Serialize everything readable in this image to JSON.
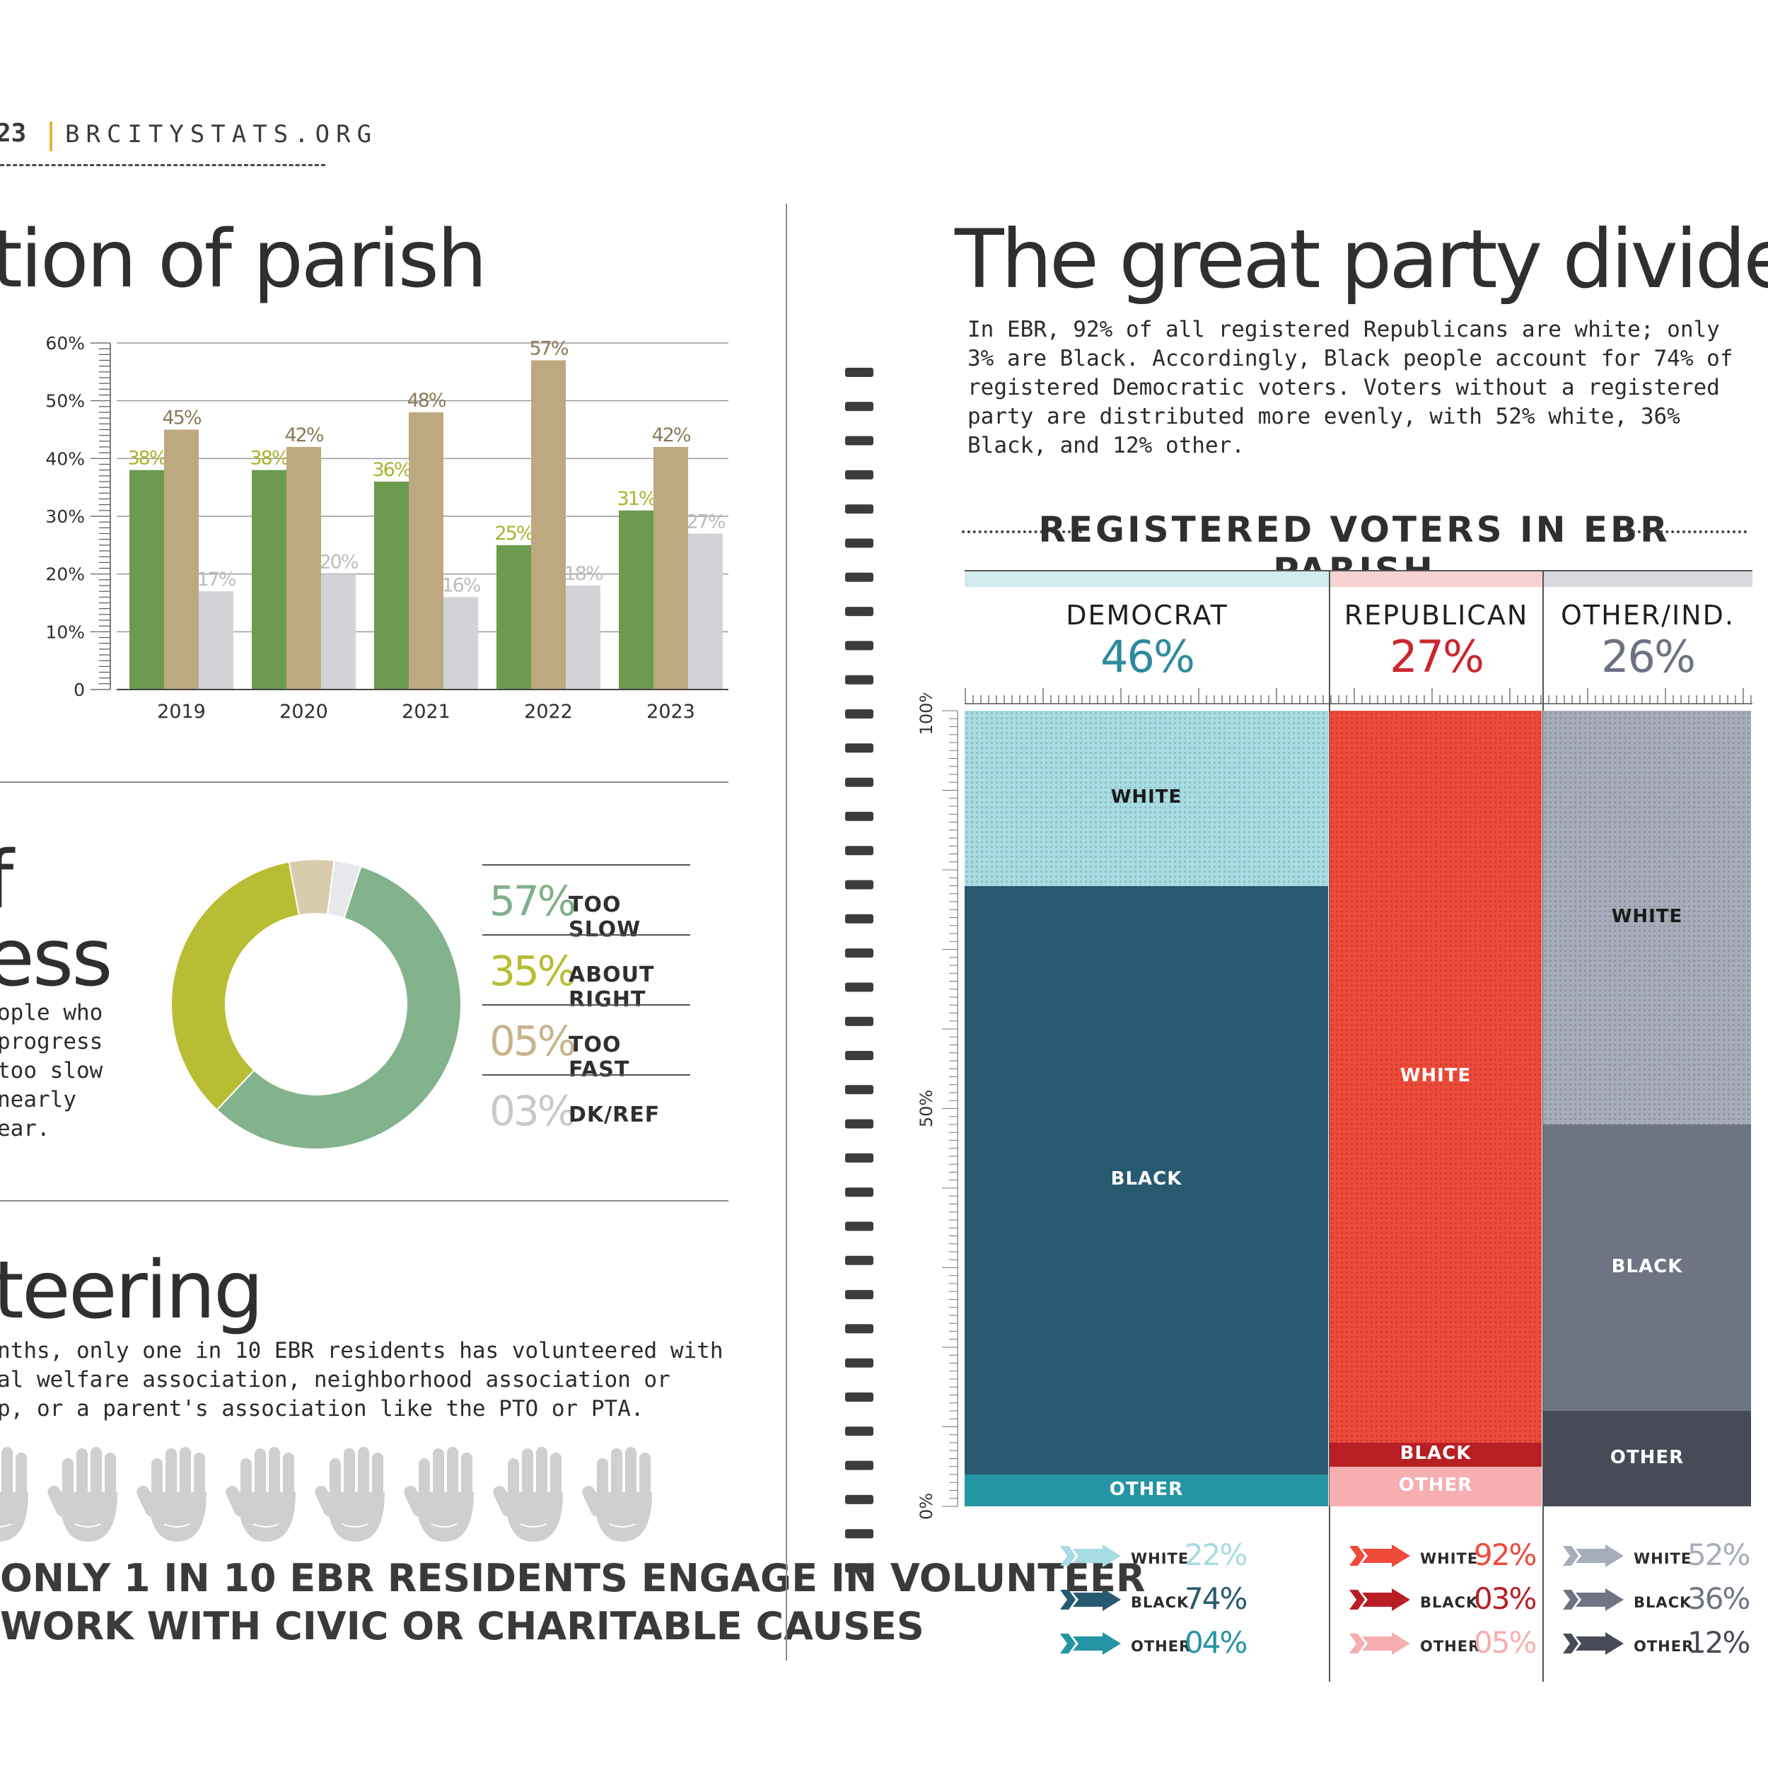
{
  "header": {
    "year_fragment": "23",
    "site": "BRCITYSTATS.ORG"
  },
  "left": {
    "section1_title": "tion of parish",
    "section2_title_a": "f",
    "section2_title_b": "ess",
    "section2_body": [
      "ople who",
      "progress",
      "too slow",
      " nearly",
      "ear."
    ],
    "section3_title": "teering",
    "section3_body": [
      "nths, only one in 10 EBR residents has volunteered with",
      "al welfare association, neighborhood association or",
      "p, or a parent's association like the PTO or PTA."
    ],
    "volunteer_line1": "ONLY 1 IN 10 EBR RESIDENTS ENGAGE IN VOLUNTEER",
    "volunteer_line2": "WORK WITH CIVIC OR CHARITABLE CAUSES",
    "legend": [
      {
        "pct": "57%",
        "label": "TOO SLOW",
        "color": "#7fb08a"
      },
      {
        "pct": "35%",
        "label": "ABOUT RIGHT",
        "color": "#b8bd33"
      },
      {
        "pct": "05%",
        "label": "TOO FAST",
        "color": "#c8b48c"
      },
      {
        "pct": "03%",
        "label": "DK/REF",
        "color": "#c9c9cc"
      }
    ]
  },
  "right": {
    "title": "The great party divide",
    "body": [
      "In EBR, 92% of all registered Republicans are white; only",
      "3% are Black. Accordingly, Black people account for 74% of",
      "registered Democratic voters. Voters without a registered",
      "party are distributed more evenly, with 52% white, 36%",
      "Black, and 12% other."
    ],
    "chart_title": "REGISTERED VOTERS IN EBR PARISH"
  },
  "chart_data": [
    {
      "type": "bar",
      "title": "",
      "categories": [
        "2019",
        "2020",
        "2021",
        "2022",
        "2023"
      ],
      "ylim": [
        0,
        60
      ],
      "yticks": [
        "0",
        "10%",
        "20%",
        "30%",
        "40%",
        "50%",
        "60%"
      ],
      "grid": true,
      "series": [
        {
          "values": [
            38,
            38,
            36,
            25,
            31
          ],
          "color": "#6c9a4e",
          "label_color": "#a9b52c"
        },
        {
          "values": [
            45,
            42,
            48,
            57,
            42
          ],
          "color": "#bca97f",
          "label_color": "#8b7b5a"
        },
        {
          "values": [
            17,
            20,
            16,
            18,
            27
          ],
          "color": "#d2d3d6",
          "label_color": "#bdbdbd"
        }
      ]
    },
    {
      "type": "pie",
      "donut": true,
      "labels": [
        "TOO SLOW",
        "ABOUT RIGHT",
        "TOO FAST",
        "DK/REF"
      ],
      "values": [
        57,
        35,
        5,
        3
      ],
      "colors": [
        "#82b38c",
        "#b9bd34",
        "#d9ccad",
        "#e8e8ec"
      ]
    },
    {
      "type": "bar",
      "stacked": true,
      "title": "REGISTERED VOTERS IN EBR PARISH",
      "yticks": [
        "0%",
        "50%",
        "100%"
      ],
      "parties": [
        {
          "name": "DEMOCRAT",
          "share": 46,
          "share_label": "46%",
          "color": "#2d8b9b",
          "top_color": "#d3ebee",
          "segments": [
            {
              "name": "OTHER",
              "value": 4,
              "label": "04%",
              "color": "#2594a4",
              "label_color": "#ffffff"
            },
            {
              "name": "BLACK",
              "value": 74,
              "label": "74%",
              "color": "#275a70",
              "label_color": "#ffffff"
            },
            {
              "name": "WHITE",
              "value": 22,
              "label": "22%",
              "color": "#a6dce2",
              "label_color": "#1a1a1a"
            }
          ]
        },
        {
          "name": "REPUBLICAN",
          "share": 27,
          "share_label": "27%",
          "color": "#c8272c",
          "top_color": "#f7d2d2",
          "segments": [
            {
              "name": "OTHER",
              "value": 5,
              "label": "05%",
              "color": "#f6aeb1",
              "label_color": "#ffffff"
            },
            {
              "name": "BLACK",
              "value": 3,
              "label": "03%",
              "color": "#b71f25",
              "label_color": "#ffffff"
            },
            {
              "name": "WHITE",
              "value": 92,
              "label": "92%",
              "color": "#ee4a3a",
              "label_color": "#ffffff"
            }
          ]
        },
        {
          "name": "OTHER/IND.",
          "share": 26,
          "share_label": "26%",
          "color": "#6d7282",
          "top_color": "#d8dae0",
          "segments": [
            {
              "name": "OTHER",
              "value": 12,
              "label": "12%",
              "color": "#474b57",
              "label_color": "#ffffff"
            },
            {
              "name": "BLACK",
              "value": 36,
              "label": "36%",
              "color": "#6f7485",
              "label_color": "#ffffff"
            },
            {
              "name": "WHITE",
              "value": 52,
              "label": "52%",
              "color": "#a7acbb",
              "label_color": "#1a1a1a"
            }
          ]
        }
      ]
    }
  ]
}
